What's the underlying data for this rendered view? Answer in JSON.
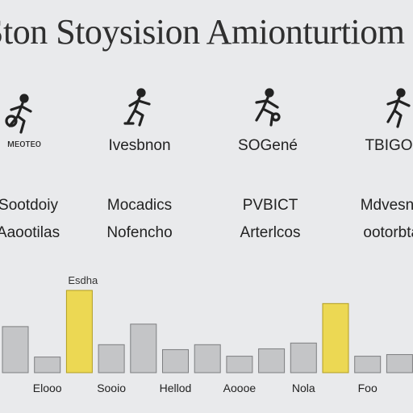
{
  "header": {
    "title": "Ston Stoysision Amionturtiom"
  },
  "columns": [
    {
      "icon": "runner-icon",
      "label": "ᴍᴇᴏᴛᴇᴏ",
      "line1": "Sootdoiy",
      "line2": "Aaootilas"
    },
    {
      "icon": "runner-icon",
      "label": "Ivesbnon",
      "line1": "Mocadics",
      "line2": "Nofencho"
    },
    {
      "icon": "runner-icon",
      "label": "SOGené",
      "line1": "PVBICT",
      "line2": "Arterlcos"
    },
    {
      "icon": "runner-icon",
      "label": "TBIGO",
      "line1": "Mdvesnes",
      "line2": "ootorbtas"
    }
  ],
  "chart_data": {
    "type": "bar",
    "annotation": "Esdha",
    "categories": [
      "",
      "Elooo",
      "",
      "Sooio",
      "",
      "Hellod",
      "",
      "Aoooe",
      "",
      "Nola",
      "",
      "Foo",
      ""
    ],
    "values": [
      56,
      19,
      100,
      34,
      59,
      28,
      34,
      20,
      29,
      36,
      84,
      20,
      22
    ],
    "highlight": [
      false,
      false,
      true,
      false,
      false,
      false,
      false,
      false,
      false,
      false,
      true,
      false,
      false
    ],
    "colors": {
      "bar": "#c4c5c7",
      "bar_stroke": "#7d7e80",
      "highlight": "#ecd853",
      "highlight_stroke": "#b29e22"
    },
    "ylim": [
      0,
      100
    ]
  }
}
